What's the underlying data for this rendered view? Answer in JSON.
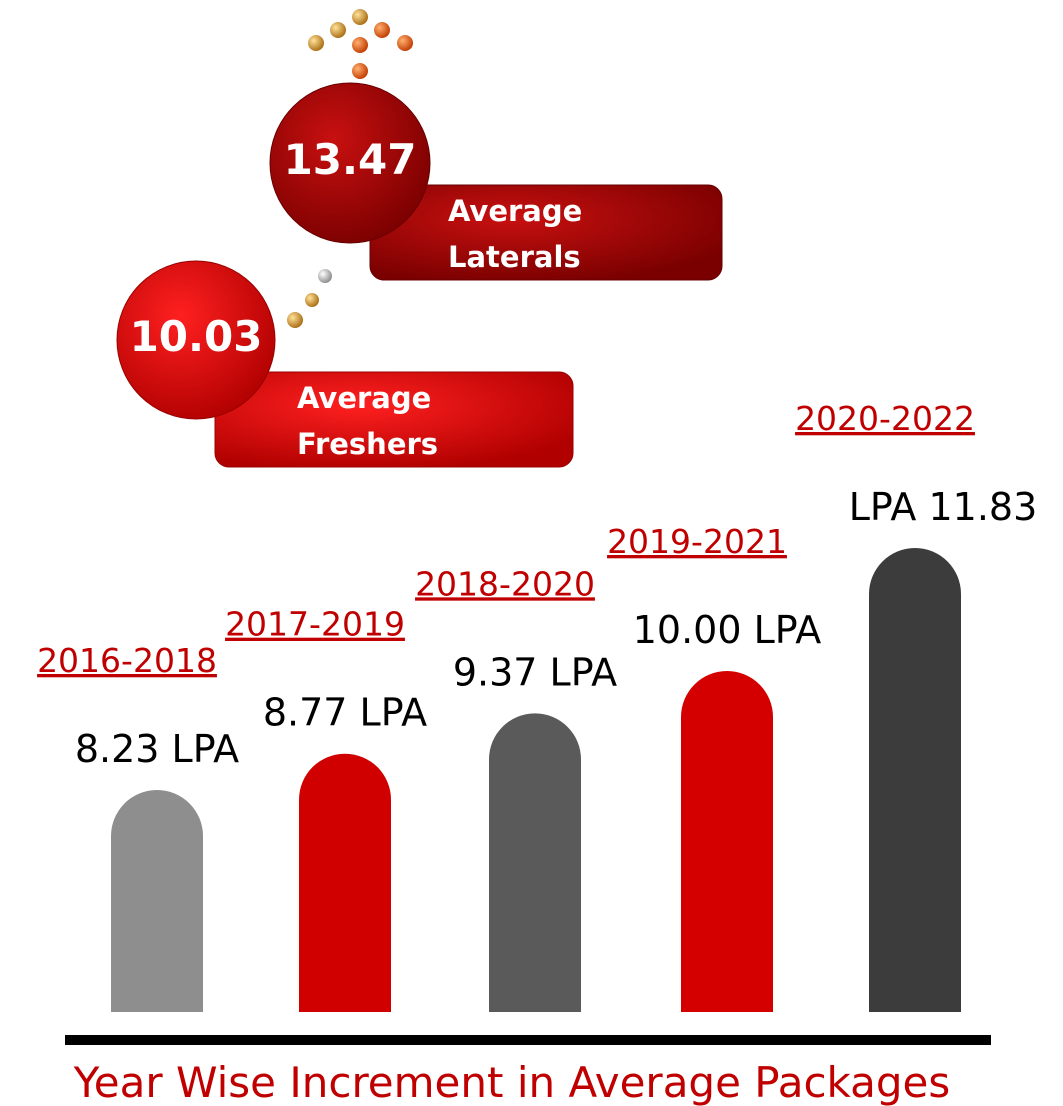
{
  "chart_data": {
    "type": "bar",
    "title": "Year Wise Increment in Average Packages",
    "categories": [
      "2016-2018",
      "2017-2019",
      "2018-2020",
      "2019-2021",
      "2020-2022"
    ],
    "values": [
      8.23,
      8.77,
      9.37,
      10.0,
      11.83
    ],
    "value_labels": [
      "8.23 LPA",
      "8.77 LPA",
      "9.37 LPA",
      "10.00 LPA",
      "LPA 11.83"
    ],
    "colors": [
      "#8e8e8e",
      "#d00000",
      "#5a5a5a",
      "#d40000",
      "#3c3c3c"
    ],
    "callouts": [
      {
        "value": 13.47,
        "label": "Average Laterals"
      },
      {
        "value": 10.03,
        "label": "Average Freshers"
      }
    ]
  }
}
